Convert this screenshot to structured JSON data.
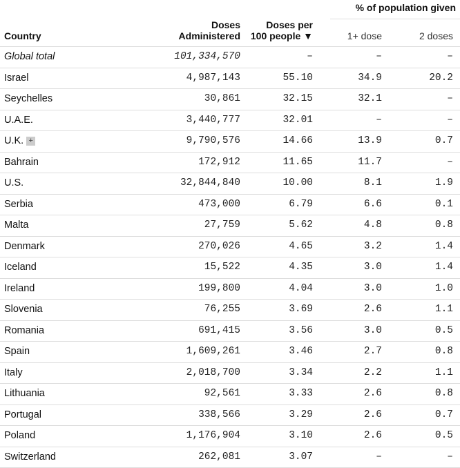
{
  "header": {
    "group_label": "% of population given",
    "country": "Country",
    "doses": [
      "Doses",
      "Administered"
    ],
    "per100": [
      "Doses per",
      "100 people ▼"
    ],
    "one_dose": "1+ dose",
    "two_doses": "2 doses"
  },
  "rows": [
    {
      "country": "Global total",
      "doses": "101,334,570",
      "per100": "–",
      "one": "–",
      "two": "–"
    },
    {
      "country": "Israel",
      "doses": "4,987,143",
      "per100": "55.10",
      "one": "34.9",
      "two": "20.2"
    },
    {
      "country": "Seychelles",
      "doses": "30,861",
      "per100": "32.15",
      "one": "32.1",
      "two": "–"
    },
    {
      "country": "U.A.E.",
      "doses": "3,440,777",
      "per100": "32.01",
      "one": "–",
      "two": "–"
    },
    {
      "country": "U.K.",
      "doses": "9,790,576",
      "per100": "14.66",
      "one": "13.9",
      "two": "0.7",
      "expand": "+"
    },
    {
      "country": "Bahrain",
      "doses": "172,912",
      "per100": "11.65",
      "one": "11.7",
      "two": "–"
    },
    {
      "country": "U.S.",
      "doses": "32,844,840",
      "per100": "10.00",
      "one": "8.1",
      "two": "1.9"
    },
    {
      "country": "Serbia",
      "doses": "473,000",
      "per100": "6.79",
      "one": "6.6",
      "two": "0.1"
    },
    {
      "country": "Malta",
      "doses": "27,759",
      "per100": "5.62",
      "one": "4.8",
      "two": "0.8"
    },
    {
      "country": "Denmark",
      "doses": "270,026",
      "per100": "4.65",
      "one": "3.2",
      "two": "1.4"
    },
    {
      "country": "Iceland",
      "doses": "15,522",
      "per100": "4.35",
      "one": "3.0",
      "two": "1.4"
    },
    {
      "country": "Ireland",
      "doses": "199,800",
      "per100": "4.04",
      "one": "3.0",
      "two": "1.0"
    },
    {
      "country": "Slovenia",
      "doses": "76,255",
      "per100": "3.69",
      "one": "2.6",
      "two": "1.1"
    },
    {
      "country": "Romania",
      "doses": "691,415",
      "per100": "3.56",
      "one": "3.0",
      "two": "0.5"
    },
    {
      "country": "Spain",
      "doses": "1,609,261",
      "per100": "3.46",
      "one": "2.7",
      "two": "0.8"
    },
    {
      "country": "Italy",
      "doses": "2,018,700",
      "per100": "3.34",
      "one": "2.2",
      "two": "1.1"
    },
    {
      "country": "Lithuania",
      "doses": "92,561",
      "per100": "3.33",
      "one": "2.6",
      "two": "0.8"
    },
    {
      "country": "Portugal",
      "doses": "338,566",
      "per100": "3.29",
      "one": "2.6",
      "two": "0.7"
    },
    {
      "country": "Poland",
      "doses": "1,176,904",
      "per100": "3.10",
      "one": "2.6",
      "two": "0.5"
    },
    {
      "country": "Switzerland",
      "doses": "262,081",
      "per100": "3.07",
      "one": "–",
      "two": "–"
    }
  ]
}
